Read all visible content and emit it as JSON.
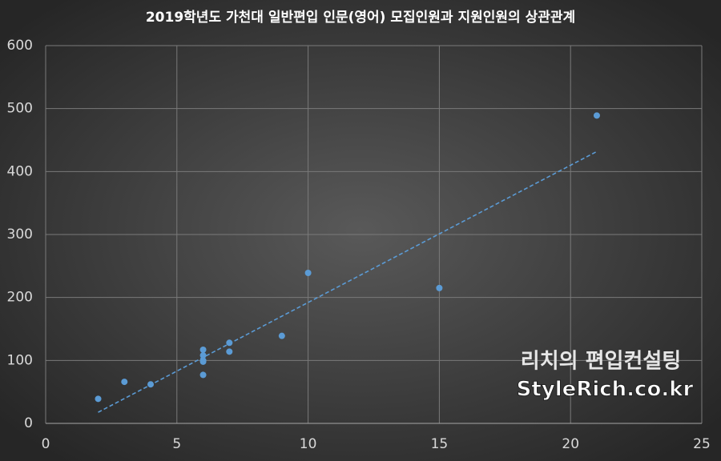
{
  "chart_data": {
    "type": "scatter",
    "title": "2019학년도 가천대 일반편입 인문(영어) 모집인원과 지원인원의 상관관계",
    "x": [
      2,
      3,
      4,
      6,
      6,
      6,
      6,
      6,
      7,
      7,
      9,
      10,
      15,
      21
    ],
    "series": [
      {
        "color": "#5b9bd5",
        "values": [
          39,
          66,
          62,
          117,
          108,
          100,
          98,
          77,
          128,
          114,
          139,
          239,
          215,
          489
        ]
      }
    ],
    "trendline": "linear",
    "trendline_color": "#5b9bd5",
    "xlim": [
      0,
      25
    ],
    "xticks": [
      0,
      5,
      10,
      15,
      20,
      25
    ],
    "ylim": [
      0,
      600
    ],
    "yticks": [
      0,
      100,
      200,
      300,
      400,
      500,
      600
    ],
    "grid": true,
    "annotations": [
      "리치의 편입컨설팅",
      "StyleRich.co.kr"
    ]
  }
}
